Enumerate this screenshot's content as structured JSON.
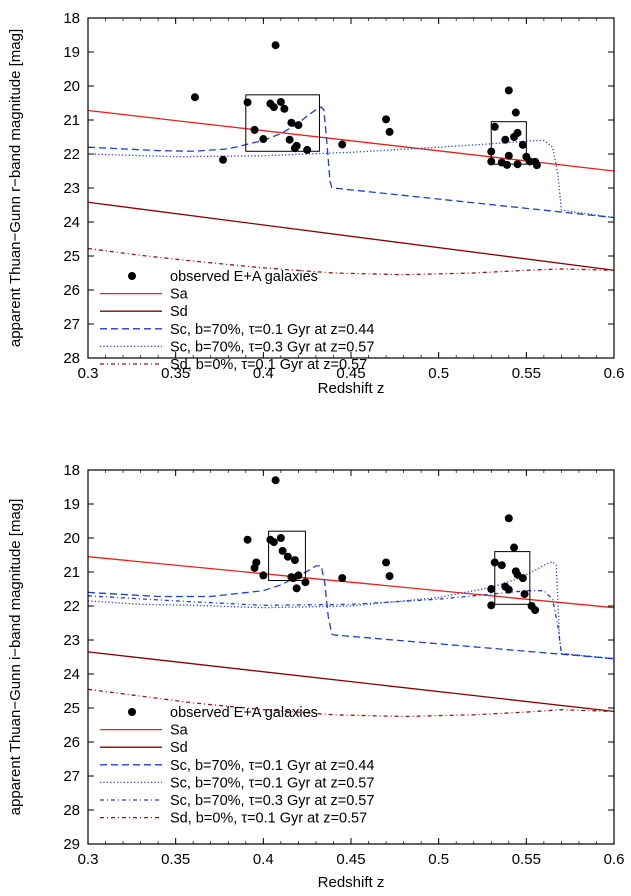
{
  "chart_data": [
    {
      "type": "scatter",
      "ylabel": "apparent Thuan−Gunn r−band magnitude [mag]",
      "xlabel": "Redshift z",
      "xlim": [
        0.3,
        0.6
      ],
      "ylim": [
        28,
        18
      ],
      "y_inverted": true,
      "xticks": [
        0.3,
        0.35,
        0.4,
        0.45,
        0.5,
        0.55,
        0.6
      ],
      "xtick_labels": [
        "0.3",
        "0.35",
        "0.4",
        "0.45",
        "0.5",
        "0.55",
        "0.6"
      ],
      "yticks": [
        18,
        19,
        20,
        21,
        22,
        23,
        24,
        25,
        26,
        27,
        28
      ],
      "ytick_labels": [
        "18",
        "19",
        "20",
        "21",
        "22",
        "23",
        "24",
        "25",
        "26",
        "27",
        "28"
      ],
      "grid": false,
      "legend_position": "bottom-left",
      "points": {
        "name": "observed E+A galaxies",
        "color": "#000000",
        "data": [
          [
            0.361,
            20.33
          ],
          [
            0.377,
            22.17
          ],
          [
            0.391,
            20.48
          ],
          [
            0.395,
            21.29
          ],
          [
            0.4,
            21.56
          ],
          [
            0.404,
            20.52
          ],
          [
            0.406,
            20.62
          ],
          [
            0.407,
            18.8
          ],
          [
            0.41,
            20.47
          ],
          [
            0.412,
            20.67
          ],
          [
            0.415,
            21.58
          ],
          [
            0.416,
            21.08
          ],
          [
            0.418,
            21.83
          ],
          [
            0.419,
            21.76
          ],
          [
            0.42,
            21.15
          ],
          [
            0.425,
            21.88
          ],
          [
            0.445,
            21.72
          ],
          [
            0.47,
            20.98
          ],
          [
            0.472,
            21.35
          ],
          [
            0.53,
            21.93
          ],
          [
            0.53,
            22.22
          ],
          [
            0.532,
            21.2
          ],
          [
            0.536,
            22.25
          ],
          [
            0.538,
            21.58
          ],
          [
            0.539,
            22.32
          ],
          [
            0.54,
            20.13
          ],
          [
            0.54,
            22.05
          ],
          [
            0.543,
            21.5
          ],
          [
            0.544,
            20.78
          ],
          [
            0.545,
            21.38
          ],
          [
            0.545,
            22.3
          ],
          [
            0.548,
            21.73
          ],
          [
            0.55,
            22.08
          ],
          [
            0.552,
            22.22
          ],
          [
            0.555,
            22.23
          ],
          [
            0.556,
            22.33
          ]
        ]
      },
      "boxes": [
        {
          "x": [
            0.39,
            0.432
          ],
          "y": [
            20.26,
            21.92
          ]
        },
        {
          "x": [
            0.53,
            0.55
          ],
          "y": [
            21.05,
            22.3
          ]
        }
      ],
      "series": [
        {
          "name": "Sa",
          "color": "#e8221c",
          "style": "solid",
          "x": [
            0.3,
            0.6
          ],
          "y": [
            20.72,
            22.5
          ]
        },
        {
          "name": "Sd",
          "color": "#8b0000",
          "style": "solid",
          "x": [
            0.3,
            0.6
          ],
          "y": [
            23.42,
            25.42
          ]
        },
        {
          "name": "Sc, b=70%, τ=0.1 Gyr at z=0.44",
          "color": "#1a3fd4",
          "style": "dashed",
          "x": [
            0.3,
            0.34,
            0.36,
            0.38,
            0.4,
            0.41,
            0.42,
            0.425,
            0.43,
            0.433,
            0.4345,
            0.436,
            0.438,
            0.439,
            0.44,
            0.6
          ],
          "y": [
            21.8,
            21.9,
            21.92,
            21.85,
            21.6,
            21.4,
            21.1,
            20.88,
            20.7,
            20.62,
            20.7,
            21.5,
            22.8,
            22.98,
            23.0,
            23.87
          ]
        },
        {
          "name": "Sc, b=70%, τ=0.3 Gyr at z=0.57",
          "color": "#1a3fd4",
          "style": "dotted",
          "x": [
            0.3,
            0.35,
            0.4,
            0.45,
            0.5,
            0.53,
            0.55,
            0.56,
            0.565,
            0.568,
            0.57,
            0.6
          ],
          "y": [
            22.0,
            22.08,
            22.05,
            21.95,
            21.8,
            21.7,
            21.62,
            21.6,
            21.8,
            22.6,
            23.65,
            23.87
          ]
        },
        {
          "name": "Sd, b=0%, τ=0.1 Gyr at z=0.57",
          "color": "#a01010",
          "style": "dashdot",
          "x": [
            0.3,
            0.33,
            0.36,
            0.4,
            0.44,
            0.48,
            0.52,
            0.55,
            0.57,
            0.6
          ],
          "y": [
            24.78,
            24.98,
            25.15,
            25.35,
            25.5,
            25.55,
            25.5,
            25.42,
            25.38,
            25.42
          ]
        }
      ],
      "legend_entries": [
        "observed E+A galaxies",
        "Sa",
        "Sd",
        "Sc, b=70%, τ=0.1 Gyr at z=0.44",
        "Sc, b=70%, τ=0.3 Gyr at z=0.57",
        "Sd, b=0%, τ=0.1 Gyr at z=0.57"
      ]
    },
    {
      "type": "scatter",
      "ylabel": "apparent Thuan−Gunn i−band magnitude [mag]",
      "xlabel": "Redshift z",
      "xlim": [
        0.3,
        0.6
      ],
      "ylim": [
        29,
        18
      ],
      "y_inverted": true,
      "xticks": [
        0.3,
        0.35,
        0.4,
        0.45,
        0.5,
        0.55,
        0.6
      ],
      "xtick_labels": [
        "0.3",
        "0.35",
        "0.4",
        "0.45",
        "0.5",
        "0.55",
        "0.6"
      ],
      "yticks": [
        18,
        19,
        20,
        21,
        22,
        23,
        24,
        25,
        26,
        27,
        28,
        29
      ],
      "ytick_labels": [
        "18",
        "19",
        "20",
        "21",
        "22",
        "23",
        "24",
        "25",
        "26",
        "27",
        "28",
        "29"
      ],
      "grid": false,
      "legend_position": "bottom-left",
      "points": {
        "name": "observed E+A galaxies",
        "color": "#000000",
        "data": [
          [
            0.391,
            20.05
          ],
          [
            0.395,
            20.88
          ],
          [
            0.396,
            20.72
          ],
          [
            0.4,
            21.1
          ],
          [
            0.404,
            20.05
          ],
          [
            0.406,
            20.12
          ],
          [
            0.407,
            18.3
          ],
          [
            0.41,
            20.0
          ],
          [
            0.411,
            20.38
          ],
          [
            0.414,
            20.55
          ],
          [
            0.416,
            21.15
          ],
          [
            0.417,
            21.18
          ],
          [
            0.418,
            20.65
          ],
          [
            0.419,
            21.48
          ],
          [
            0.42,
            21.1
          ],
          [
            0.424,
            21.3
          ],
          [
            0.445,
            21.18
          ],
          [
            0.47,
            20.72
          ],
          [
            0.472,
            21.12
          ],
          [
            0.53,
            21.5
          ],
          [
            0.53,
            21.98
          ],
          [
            0.532,
            20.72
          ],
          [
            0.536,
            20.8
          ],
          [
            0.538,
            21.43
          ],
          [
            0.54,
            19.42
          ],
          [
            0.54,
            21.52
          ],
          [
            0.543,
            20.28
          ],
          [
            0.544,
            20.98
          ],
          [
            0.545,
            21.08
          ],
          [
            0.548,
            21.18
          ],
          [
            0.549,
            21.65
          ],
          [
            0.553,
            22.0
          ],
          [
            0.555,
            22.12
          ]
        ]
      },
      "boxes": [
        {
          "x": [
            0.403,
            0.424
          ],
          "y": [
            19.8,
            21.25
          ]
        },
        {
          "x": [
            0.532,
            0.552
          ],
          "y": [
            20.4,
            21.95
          ]
        }
      ],
      "series": [
        {
          "name": "Sa",
          "color": "#e8221c",
          "style": "solid",
          "x": [
            0.3,
            0.6
          ],
          "y": [
            20.55,
            22.05
          ]
        },
        {
          "name": "Sd",
          "color": "#8b0000",
          "style": "solid",
          "x": [
            0.3,
            0.6
          ],
          "y": [
            23.35,
            25.1
          ]
        },
        {
          "name": "Sc, b=70%, τ=0.1 Gyr at z=0.44",
          "color": "#1a3fd4",
          "style": "dashed",
          "x": [
            0.3,
            0.34,
            0.37,
            0.4,
            0.41,
            0.42,
            0.426,
            0.43,
            0.433,
            0.435,
            0.437,
            0.439,
            0.44,
            0.6
          ],
          "y": [
            21.6,
            21.72,
            21.72,
            21.55,
            21.38,
            21.12,
            20.95,
            20.82,
            20.82,
            21.3,
            22.3,
            22.82,
            22.85,
            23.55
          ]
        },
        {
          "name": "Sc, b=70%, τ=0.1 Gyr at z=0.57",
          "color": "#1a3fd4",
          "style": "dotted",
          "x": [
            0.3,
            0.33,
            0.36,
            0.4,
            0.45,
            0.5,
            0.53,
            0.545,
            0.555,
            0.562,
            0.565,
            0.567,
            0.568,
            0.569,
            0.57,
            0.6
          ],
          "y": [
            21.85,
            21.95,
            21.98,
            22.05,
            22.0,
            21.75,
            21.45,
            21.2,
            20.95,
            20.75,
            20.7,
            20.8,
            21.8,
            23.0,
            23.4,
            23.55
          ]
        },
        {
          "name": "Sc, b=70%, τ=0.3 Gyr at z=0.57",
          "color": "#1a3fd4",
          "style": "dashdot",
          "x": [
            0.3,
            0.35,
            0.4,
            0.45,
            0.5,
            0.53,
            0.55,
            0.56,
            0.565,
            0.568,
            0.57,
            0.6
          ],
          "y": [
            21.7,
            21.85,
            21.98,
            21.95,
            21.8,
            21.65,
            21.55,
            21.55,
            21.8,
            22.6,
            23.4,
            23.55
          ]
        },
        {
          "name": "Sd, b=0%, τ=0.1 Gyr at z=0.57",
          "color": "#a01010",
          "style": "dashdot",
          "x": [
            0.3,
            0.33,
            0.36,
            0.4,
            0.44,
            0.48,
            0.52,
            0.55,
            0.57,
            0.6
          ],
          "y": [
            24.45,
            24.65,
            24.85,
            25.05,
            25.2,
            25.25,
            25.2,
            25.12,
            25.05,
            25.1
          ]
        }
      ],
      "legend_entries": [
        "observed E+A galaxies",
        "Sa",
        "Sd",
        "Sc, b=70%, τ=0.1 Gyr at z=0.44",
        "Sc, b=70%, τ=0.1 Gyr at z=0.57",
        "Sc, b=70%, τ=0.3 Gyr at z=0.57",
        "Sd, b=0%, τ=0.1 Gyr at z=0.57"
      ]
    }
  ]
}
